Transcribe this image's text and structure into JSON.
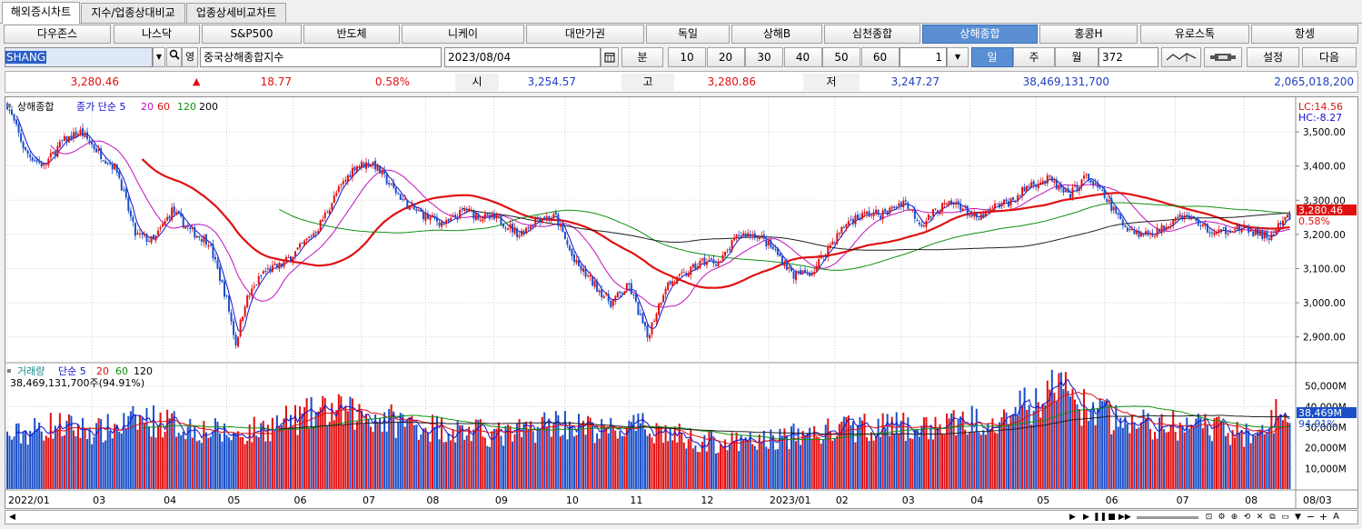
{
  "tabs": [
    "해외증시차트",
    "지수/업종상대비교",
    "업종상세비교차트"
  ],
  "markets": [
    "다우존스",
    "나스닥",
    "S&P500",
    "반도체",
    "니케이",
    "대만가권",
    "독일",
    "상해B",
    "심천종합",
    "상해종합",
    "홍콩H",
    "유로스톡",
    "항셍"
  ],
  "active_market": "상해종합",
  "controls": {
    "symbol": "SHANG",
    "name_toggle": "영",
    "name": "중국상해종합지수",
    "date": "2023/08/04",
    "minute_label": "분",
    "minute_options": [
      "10",
      "20",
      "30",
      "40",
      "50",
      "60"
    ],
    "tick_value": "1",
    "day_label": "일",
    "week_label": "주",
    "month_label": "월",
    "count": "372",
    "settings": "설정",
    "next": "다음"
  },
  "quote": {
    "price": "3,280.46",
    "arrow": "▲",
    "change": "18.77",
    "change_pct": "0.58%",
    "open_label": "시",
    "open": "3,254.57",
    "high_label": "고",
    "high": "3,280.86",
    "low_label": "저",
    "low": "3,247.27",
    "volume": "38,469,131,700",
    "amount": "2,065,018,200"
  },
  "chart_data": {
    "type": "candlestick",
    "price_legend": {
      "symbol": "상해종합",
      "ma_label": "종가 단순 5"
    },
    "ma_periods": [
      "5",
      "20",
      "60",
      "120",
      "200"
    ],
    "volume_legend": {
      "title": "거래량",
      "ma_label": "단순 5",
      "value": "38,469,131,700주(94.91%)"
    },
    "volume_ma_periods": [
      "5",
      "20",
      "60",
      "120"
    ],
    "lc_label": "LC:14.56",
    "hc_label": "HC:-8.27",
    "price_tag": "3,280.46",
    "pct_tag": "0.58%",
    "volume_tag": "38,469M",
    "volume_pct_tag": "94.91%",
    "price_axis": {
      "ticks": [
        "3,500.00",
        "3,400.00",
        "3,300.00",
        "3,200.00",
        "3,100.00",
        "3,000.00",
        "2,900.00"
      ],
      "ylim": [
        2830,
        3580
      ]
    },
    "volume_axis": {
      "ticks": [
        "50,000M",
        "40,000M",
        "30,000M",
        "20,000M",
        "10,000M"
      ],
      "ylim": [
        0,
        60000
      ]
    },
    "x_labels": [
      "2022/01",
      "03",
      "04",
      "05",
      "06",
      "07",
      "08",
      "09",
      "10",
      "11",
      "12",
      "2023/01",
      "02",
      "03",
      "04",
      "05",
      "06",
      "07",
      "08"
    ],
    "last_date_label": "08/03",
    "anchors": [
      [
        0,
        3580
      ],
      [
        8,
        3440
      ],
      [
        16,
        3400
      ],
      [
        24,
        3470
      ],
      [
        32,
        3500
      ],
      [
        40,
        3440
      ],
      [
        48,
        3390
      ],
      [
        56,
        3200
      ],
      [
        64,
        3180
      ],
      [
        72,
        3270
      ],
      [
        80,
        3210
      ],
      [
        88,
        3180
      ],
      [
        96,
        3010
      ],
      [
        100,
        2880
      ],
      [
        104,
        3000
      ],
      [
        112,
        3090
      ],
      [
        120,
        3110
      ],
      [
        128,
        3160
      ],
      [
        136,
        3220
      ],
      [
        144,
        3320
      ],
      [
        152,
        3400
      ],
      [
        160,
        3410
      ],
      [
        168,
        3340
      ],
      [
        176,
        3280
      ],
      [
        184,
        3250
      ],
      [
        192,
        3230
      ],
      [
        200,
        3270
      ],
      [
        208,
        3250
      ],
      [
        216,
        3240
      ],
      [
        224,
        3200
      ],
      [
        232,
        3250
      ],
      [
        240,
        3250
      ],
      [
        248,
        3120
      ],
      [
        256,
        3060
      ],
      [
        264,
        3000
      ],
      [
        272,
        3050
      ],
      [
        280,
        2900
      ],
      [
        288,
        3050
      ],
      [
        296,
        3080
      ],
      [
        304,
        3120
      ],
      [
        312,
        3120
      ],
      [
        320,
        3200
      ],
      [
        328,
        3200
      ],
      [
        336,
        3150
      ],
      [
        344,
        3080
      ],
      [
        352,
        3090
      ],
      [
        360,
        3170
      ],
      [
        368,
        3240
      ],
      [
        376,
        3260
      ],
      [
        384,
        3260
      ],
      [
        392,
        3300
      ],
      [
        400,
        3230
      ],
      [
        408,
        3280
      ],
      [
        416,
        3290
      ],
      [
        424,
        3240
      ],
      [
        432,
        3280
      ],
      [
        440,
        3300
      ],
      [
        448,
        3350
      ],
      [
        456,
        3360
      ],
      [
        464,
        3310
      ],
      [
        472,
        3370
      ],
      [
        480,
        3310
      ],
      [
        488,
        3230
      ],
      [
        496,
        3200
      ],
      [
        504,
        3210
      ],
      [
        512,
        3260
      ],
      [
        520,
        3240
      ],
      [
        528,
        3200
      ],
      [
        536,
        3220
      ],
      [
        544,
        3210
      ],
      [
        552,
        3190
      ],
      [
        560,
        3250
      ]
    ],
    "volume_anchors": [
      [
        0,
        25000
      ],
      [
        20,
        31000
      ],
      [
        40,
        28000
      ],
      [
        60,
        34000
      ],
      [
        80,
        30000
      ],
      [
        100,
        26000
      ],
      [
        120,
        32000
      ],
      [
        140,
        38000
      ],
      [
        160,
        35000
      ],
      [
        180,
        31000
      ],
      [
        200,
        28000
      ],
      [
        220,
        26000
      ],
      [
        240,
        33000
      ],
      [
        260,
        28000
      ],
      [
        280,
        30000
      ],
      [
        300,
        24000
      ],
      [
        320,
        22000
      ],
      [
        340,
        25000
      ],
      [
        360,
        28000
      ],
      [
        380,
        31000
      ],
      [
        400,
        29000
      ],
      [
        430,
        35000
      ],
      [
        450,
        41000
      ],
      [
        460,
        52000
      ],
      [
        470,
        40000
      ],
      [
        490,
        32000
      ],
      [
        520,
        30000
      ],
      [
        540,
        27000
      ],
      [
        552,
        29000
      ],
      [
        558,
        44000
      ],
      [
        561,
        38469
      ]
    ]
  },
  "scrollbar": {
    "auto": "A"
  }
}
